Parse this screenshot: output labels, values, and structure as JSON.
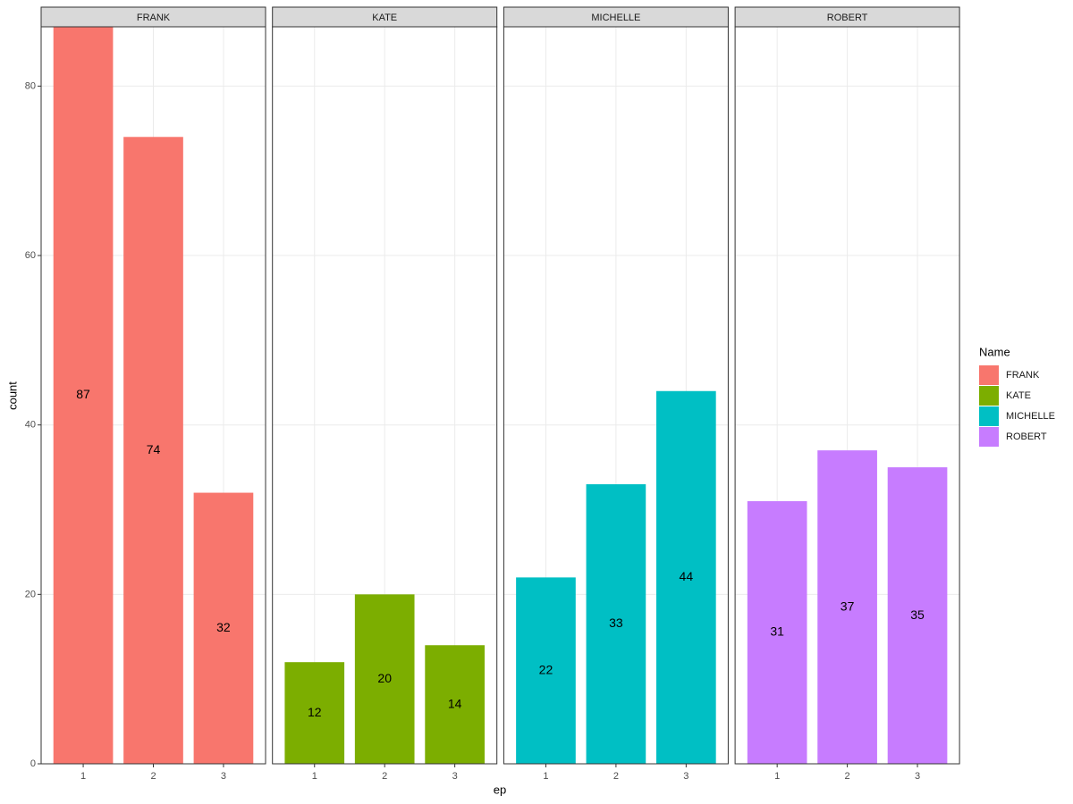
{
  "chart_data": {
    "type": "bar",
    "x_label": "ep",
    "y_label": "count",
    "legend_title": "Name",
    "categories": [
      "1",
      "2",
      "3"
    ],
    "series": [
      {
        "name": "FRANK",
        "color": "#F8766D",
        "values": [
          87,
          74,
          32
        ]
      },
      {
        "name": "KATE",
        "color": "#7CAE00",
        "values": [
          12,
          20,
          14
        ]
      },
      {
        "name": "MICHELLE",
        "color": "#00BFC4",
        "values": [
          22,
          33,
          44
        ]
      },
      {
        "name": "ROBERT",
        "color": "#C77CFF",
        "values": [
          31,
          37,
          35
        ]
      }
    ],
    "ylim": [
      0,
      87
    ],
    "yticks": [
      0,
      20,
      40,
      60,
      80
    ],
    "grid": true,
    "legend": "right"
  }
}
